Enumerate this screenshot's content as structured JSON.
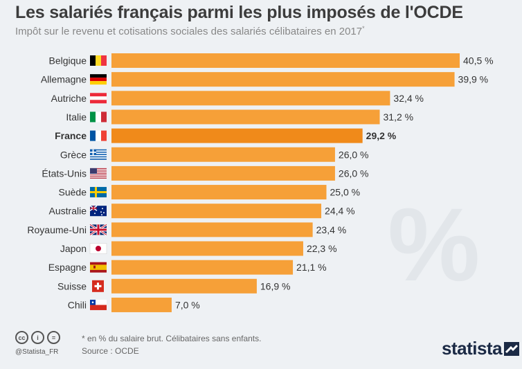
{
  "header": {
    "title": "Les salariés français parmi les plus imposés de l'OCDE",
    "subtitle": "Impôt sur le revenu et cotisations sociales des salariés célibataires en 2017",
    "subtitle_marker": "*"
  },
  "chart_data": {
    "type": "bar",
    "orientation": "horizontal",
    "categories": [
      "Belgique",
      "Allemagne",
      "Autriche",
      "Italie",
      "France",
      "Grèce",
      "États-Unis",
      "Suède",
      "Australie",
      "Royaume-Uni",
      "Japon",
      "Espagne",
      "Suisse",
      "Chili"
    ],
    "values": [
      40.5,
      39.9,
      32.4,
      31.2,
      29.2,
      26.0,
      26.0,
      25.0,
      24.4,
      23.4,
      22.3,
      21.1,
      16.9,
      7.0
    ],
    "value_labels": [
      "40,5 %",
      "39,9 %",
      "32,4 %",
      "31,2 %",
      "29,2 %",
      "26,0 %",
      "26,0 %",
      "25,0 %",
      "24,4 %",
      "23,4 %",
      "22,3 %",
      "21,1 %",
      "16,9 %",
      "7,0 %"
    ],
    "highlight": "France",
    "flags": [
      "flag-belgium-icon",
      "flag-germany-icon",
      "flag-austria-icon",
      "flag-italy-icon",
      "flag-france-icon",
      "flag-greece-icon",
      "flag-usa-icon",
      "flag-sweden-icon",
      "flag-australia-icon",
      "flag-uk-icon",
      "flag-japan-icon",
      "flag-spain-icon",
      "flag-switzerland-icon",
      "flag-chile-icon"
    ],
    "colors": {
      "bar": "#f6a038",
      "highlight": "#f08a1a"
    },
    "grid": false,
    "xlim": [
      0,
      42
    ]
  },
  "watermark": "%",
  "footer": {
    "handle": "@Statista_FR",
    "note": "* en % du salaire brut. Célibataires sans enfants.",
    "source": "Source : OCDE",
    "brand": "statista"
  }
}
